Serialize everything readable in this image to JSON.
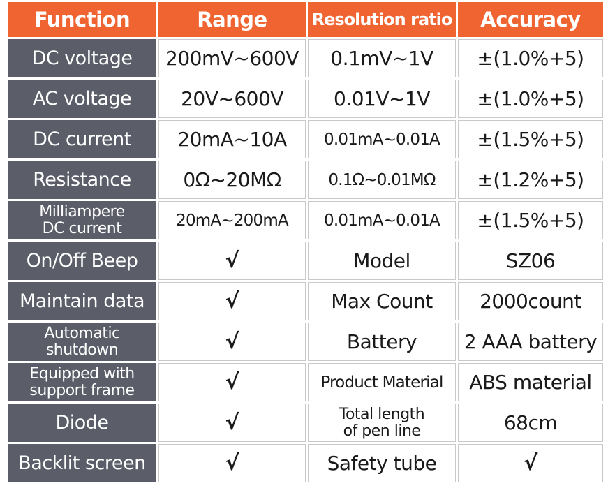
{
  "headers": {
    "function": "Function",
    "range": "Range",
    "resolution": "Resolution ratio",
    "accuracy": "Accuracy"
  },
  "measure_rows": [
    {
      "function": "DC voltage",
      "range": "200mV~600V",
      "resolution": "0.1mV~1V",
      "accuracy": "±(1.0%+5)"
    },
    {
      "function": "AC voltage",
      "range": "20V~600V",
      "resolution": "0.01V~1V",
      "accuracy": "±(1.0%+5)"
    },
    {
      "function": "DC current",
      "range": "20mA~10A",
      "resolution": "0.01mA~0.01A",
      "accuracy": "±(1.5%+5)"
    },
    {
      "function": "Resistance",
      "range": "0Ω~20MΩ",
      "resolution": "0.1Ω~0.01MΩ",
      "accuracy": "±(1.2%+5)"
    },
    {
      "function_line1": "Milliampere",
      "function_line2": "DC current",
      "range": "20mA~200mA",
      "resolution": "0.01mA~0.01A",
      "accuracy": "±(1.5%+5)"
    }
  ],
  "feature_rows": [
    {
      "function": "On/Off Beep",
      "check": "√",
      "key": "Model",
      "value": "SZ06"
    },
    {
      "function": "Maintain data",
      "check": "√",
      "key": "Max Count",
      "value": "2000count"
    },
    {
      "function_line1": "Automatic",
      "function_line2": "shutdown",
      "check": "√",
      "key": "Battery",
      "value": "2 AAA battery"
    },
    {
      "function_line1": "Equipped with",
      "function_line2": "support frame",
      "check": "√",
      "key": "Product Material",
      "value": "ABS material"
    },
    {
      "function": "Diode",
      "check": "√",
      "key_line1": "Total length",
      "key_line2": "of pen line",
      "value": "68cm"
    },
    {
      "function": "Backlit screen",
      "check": "√",
      "key": "Safety tube",
      "value": "√"
    }
  ],
  "colors": {
    "header_bg": "#f06432",
    "function_bg": "#5b5e68",
    "text_light": "#ffffff",
    "text_dark": "#1a1a1a"
  }
}
